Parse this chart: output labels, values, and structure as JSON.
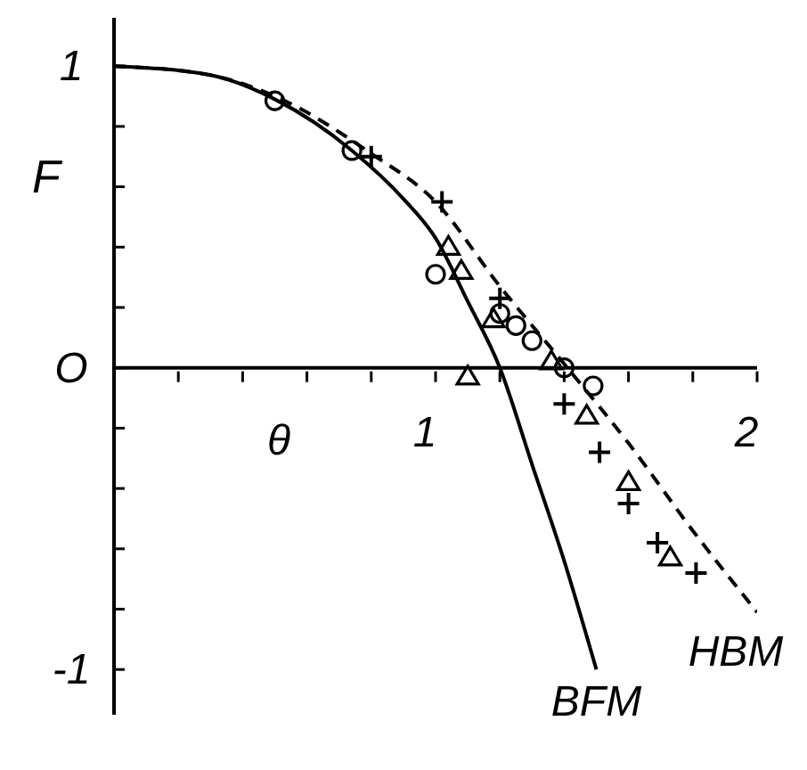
{
  "chart_data": {
    "type": "scatter",
    "xlabel": "θ",
    "ylabel": "F",
    "xlim": [
      0,
      2
    ],
    "ylim": [
      -1.15,
      1.16
    ],
    "xticks": [
      {
        "value": 0.2,
        "label": null
      },
      {
        "value": 0.4,
        "label": null
      },
      {
        "value": 0.6,
        "label": null
      },
      {
        "value": 0.8,
        "label": null
      },
      {
        "value": 1,
        "label": "1"
      },
      {
        "value": 1.2,
        "label": null
      },
      {
        "value": 1.4,
        "label": null
      },
      {
        "value": 1.6,
        "label": null
      },
      {
        "value": 1.8,
        "label": null
      },
      {
        "value": 2,
        "label": "2"
      }
    ],
    "yticks": [
      {
        "value": -1,
        "label": "-1"
      },
      {
        "value": -0.8,
        "label": null
      },
      {
        "value": -0.6,
        "label": null
      },
      {
        "value": -0.4,
        "label": null
      },
      {
        "value": -0.2,
        "label": null
      },
      {
        "value": 0,
        "label": "O"
      },
      {
        "value": 0.2,
        "label": null
      },
      {
        "value": 0.4,
        "label": null
      },
      {
        "value": 0.6,
        "label": null
      },
      {
        "value": 0.8,
        "label": null
      },
      {
        "value": 1,
        "label": "1"
      }
    ],
    "series": [
      {
        "name": "BFM",
        "type": "line",
        "color": "#000000",
        "line_style": "solid",
        "marker": "none",
        "x": [
          0,
          0.3,
          0.5,
          0.74,
          0.9,
          1.0,
          1.1,
          1.2,
          1.3,
          1.4,
          1.5
        ],
        "values": [
          1,
          0.97,
          0.89,
          0.72,
          0.56,
          0.43,
          0.22,
          0,
          -0.32,
          -0.64,
          -1.0
        ]
      },
      {
        "name": "HBM",
        "type": "line",
        "color": "#000000",
        "line_style": "dashed",
        "marker": "none",
        "x": [
          0,
          0.3,
          0.5,
          0.8,
          1.0,
          1.2,
          1.41,
          1.6,
          1.8,
          2.0
        ],
        "values": [
          1,
          0.97,
          0.9,
          0.71,
          0.55,
          0.27,
          0,
          -0.25,
          -0.54,
          -0.81
        ]
      },
      {
        "color": "#000000",
        "marker": "circle",
        "x": [
          0.5,
          0.74,
          1.0,
          1.2,
          1.25,
          1.3,
          1.4,
          1.49
        ],
        "values": [
          0.885,
          0.72,
          0.31,
          0.18,
          0.14,
          0.09,
          0,
          -0.06
        ]
      },
      {
        "color": "#000000",
        "marker": "cross",
        "x": [
          0.8,
          1.02,
          1.2,
          1.4,
          1.51,
          1.6,
          1.69,
          1.81
        ],
        "values": [
          0.7,
          0.55,
          0.23,
          -0.12,
          -0.28,
          -0.45,
          -0.58,
          -0.68
        ]
      },
      {
        "color": "#000000",
        "marker": "triangle",
        "x": [
          1.04,
          1.08,
          1.18,
          1.1,
          1.36,
          1.47,
          1.6,
          1.73
        ],
        "values": [
          0.4,
          0.32,
          0.16,
          -0.03,
          0.02,
          -0.16,
          -0.38,
          -0.63
        ]
      }
    ]
  }
}
